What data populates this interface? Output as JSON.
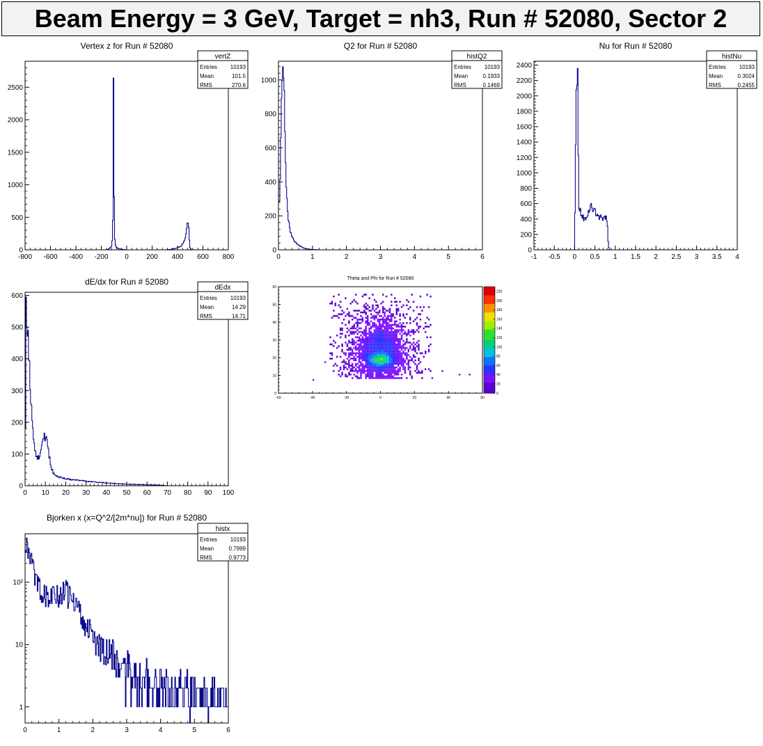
{
  "page": {
    "title": "Beam Energy = 3 GeV, Target = nh3, Run # 52080, Sector 2"
  },
  "stats_labels": {
    "entries": "Entries",
    "mean": "Mean",
    "rms": "RMS"
  },
  "palette": {
    "line": "#0a0a8c",
    "frame": "#000000",
    "title_bg": "#f2f2f2"
  },
  "chart_data": [
    {
      "id": "vertz",
      "type": "histogram",
      "title": "Vertex z for Run # 52080",
      "stats": {
        "name": "vertZ",
        "entries": "10193",
        "mean": "101.5",
        "rms": "270.6"
      },
      "xlim": [
        -800,
        800
      ],
      "ylim": [
        0,
        2900
      ],
      "xticks": [
        -800,
        -600,
        -400,
        -200,
        0,
        200,
        400,
        600,
        800
      ],
      "xtick_labels": [
        "-800",
        "-600",
        "-400",
        "-200",
        "0",
        "200",
        "400",
        "600",
        "800"
      ],
      "yticks": [
        0,
        500,
        1000,
        1500,
        2000,
        2500
      ],
      "ytick_labels": [
        "0",
        "500",
        "1000",
        "1500",
        "2000",
        "2500"
      ],
      "points": [
        [
          -800,
          0
        ],
        [
          -160,
          0
        ],
        [
          -150,
          5
        ],
        [
          -140,
          15
        ],
        [
          -130,
          30
        ],
        [
          -120,
          50
        ],
        [
          -110,
          200
        ],
        [
          -104,
          2800
        ],
        [
          -100,
          1000
        ],
        [
          -96,
          300
        ],
        [
          -92,
          100
        ],
        [
          -85,
          50
        ],
        [
          -75,
          30
        ],
        [
          -60,
          15
        ],
        [
          -40,
          8
        ],
        [
          -20,
          4
        ],
        [
          0,
          0
        ],
        [
          300,
          0
        ],
        [
          340,
          5
        ],
        [
          380,
          20
        ],
        [
          410,
          40
        ],
        [
          430,
          60
        ],
        [
          450,
          120
        ],
        [
          460,
          160
        ],
        [
          470,
          280
        ],
        [
          478,
          420
        ],
        [
          484,
          460
        ],
        [
          490,
          300
        ],
        [
          495,
          80
        ],
        [
          500,
          20
        ],
        [
          510,
          5
        ],
        [
          520,
          0
        ],
        [
          800,
          0
        ]
      ]
    },
    {
      "id": "q2",
      "type": "histogram",
      "title": "Q2 for Run # 52080",
      "stats": {
        "name": "histQ2",
        "entries": "10193",
        "mean": "0.1933",
        "rms": "0.1469"
      },
      "xlim": [
        0,
        6
      ],
      "ylim": [
        0,
        1110
      ],
      "xticks": [
        0,
        1,
        2,
        3,
        4,
        5,
        6
      ],
      "xtick_labels": [
        "0",
        "1",
        "2",
        "3",
        "4",
        "5",
        "6"
      ],
      "yticks": [
        0,
        200,
        400,
        600,
        800,
        1000
      ],
      "ytick_labels": [
        "0",
        "200",
        "400",
        "600",
        "800",
        "1000"
      ],
      "points": [
        [
          0,
          300
        ],
        [
          0.02,
          250
        ],
        [
          0.05,
          400
        ],
        [
          0.08,
          800
        ],
        [
          0.11,
          1060
        ],
        [
          0.14,
          1040
        ],
        [
          0.17,
          900
        ],
        [
          0.2,
          600
        ],
        [
          0.23,
          400
        ],
        [
          0.26,
          250
        ],
        [
          0.3,
          170
        ],
        [
          0.35,
          110
        ],
        [
          0.4,
          80
        ],
        [
          0.45,
          60
        ],
        [
          0.5,
          45
        ],
        [
          0.55,
          35
        ],
        [
          0.6,
          25
        ],
        [
          0.65,
          20
        ],
        [
          0.7,
          15
        ],
        [
          0.75,
          10
        ],
        [
          0.8,
          8
        ],
        [
          0.9,
          4
        ],
        [
          1.0,
          2
        ],
        [
          1.2,
          0
        ],
        [
          6,
          0
        ]
      ]
    },
    {
      "id": "nu",
      "type": "histogram",
      "title": "Nu for Run # 52080",
      "stats": {
        "name": "histNu",
        "entries": "10193",
        "mean": "0.3024",
        "rms": "0.2455"
      },
      "xlim": [
        -1,
        4
      ],
      "ylim": [
        0,
        2450
      ],
      "xticks": [
        -1,
        -0.5,
        0,
        0.5,
        1,
        1.5,
        2,
        2.5,
        3,
        3.5,
        4
      ],
      "xtick_labels": [
        "-1",
        "-0.5",
        "0",
        "0.5",
        "1",
        "1.5",
        "2",
        "2.5",
        "3",
        "3.5",
        "4"
      ],
      "yticks": [
        0,
        200,
        400,
        600,
        800,
        1000,
        1200,
        1400,
        1600,
        1800,
        2000,
        2200,
        2400
      ],
      "ytick_labels": [
        "0",
        "200",
        "400",
        "600",
        "800",
        "1000",
        "1200",
        "1400",
        "1600",
        "1800",
        "2000",
        "2200",
        "2400"
      ],
      "points": [
        [
          -1,
          0
        ],
        [
          0,
          0
        ],
        [
          0.02,
          1220
        ],
        [
          0.05,
          2340
        ],
        [
          0.08,
          2340
        ],
        [
          0.1,
          550
        ],
        [
          0.15,
          500
        ],
        [
          0.2,
          430
        ],
        [
          0.25,
          380
        ],
        [
          0.3,
          450
        ],
        [
          0.35,
          520
        ],
        [
          0.4,
          570
        ],
        [
          0.45,
          540
        ],
        [
          0.5,
          500
        ],
        [
          0.55,
          470
        ],
        [
          0.6,
          440
        ],
        [
          0.65,
          430
        ],
        [
          0.7,
          400
        ],
        [
          0.75,
          420
        ],
        [
          0.8,
          380
        ],
        [
          0.83,
          50
        ],
        [
          0.86,
          0
        ],
        [
          4,
          0
        ]
      ]
    },
    {
      "id": "dedx",
      "type": "histogram",
      "title": "dE/dx for Run # 52080",
      "stats": {
        "name": "dEdx",
        "entries": "10193",
        "mean": "14.29",
        "rms": "14.71"
      },
      "xlim": [
        0,
        100
      ],
      "ylim": [
        0,
        610
      ],
      "xticks": [
        0,
        10,
        20,
        30,
        40,
        50,
        60,
        70,
        80,
        90,
        100
      ],
      "xtick_labels": [
        "0",
        "10",
        "20",
        "30",
        "40",
        "50",
        "60",
        "70",
        "80",
        "90",
        "100"
      ],
      "yticks": [
        0,
        100,
        200,
        300,
        400,
        500,
        600
      ],
      "ytick_labels": [
        "0",
        "100",
        "200",
        "300",
        "400",
        "500",
        "600"
      ],
      "points": [
        [
          0,
          0
        ],
        [
          0.5,
          580
        ],
        [
          1,
          520
        ],
        [
          1.5,
          470
        ],
        [
          2,
          400
        ],
        [
          2.5,
          330
        ],
        [
          3,
          250
        ],
        [
          3.5,
          200
        ],
        [
          4,
          160
        ],
        [
          4.5,
          130
        ],
        [
          5,
          110
        ],
        [
          5.5,
          100
        ],
        [
          6,
          90
        ],
        [
          6.5,
          90
        ],
        [
          7,
          95
        ],
        [
          7.5,
          110
        ],
        [
          8,
          120
        ],
        [
          8.5,
          135
        ],
        [
          9,
          150
        ],
        [
          9.5,
          158
        ],
        [
          10,
          155
        ],
        [
          10.5,
          150
        ],
        [
          11,
          130
        ],
        [
          11.5,
          110
        ],
        [
          12,
          90
        ],
        [
          12.5,
          70
        ],
        [
          13,
          55
        ],
        [
          14,
          40
        ],
        [
          15,
          32
        ],
        [
          16,
          28
        ],
        [
          18,
          26
        ],
        [
          20,
          22
        ],
        [
          22,
          20
        ],
        [
          25,
          18
        ],
        [
          28,
          16
        ],
        [
          30,
          14
        ],
        [
          35,
          11
        ],
        [
          40,
          9
        ],
        [
          45,
          7
        ],
        [
          50,
          5
        ],
        [
          55,
          4
        ],
        [
          60,
          3
        ],
        [
          65,
          2
        ],
        [
          68,
          1
        ],
        [
          70,
          0
        ],
        [
          100,
          0
        ]
      ]
    },
    {
      "id": "thetaphi",
      "type": "heatmap",
      "title": "Theta and Phi for Run # 52080",
      "xlim": [
        -60,
        60
      ],
      "ylim": [
        0,
        60
      ],
      "xticks": [
        -60,
        -40,
        -20,
        0,
        20,
        40,
        60
      ],
      "xtick_labels": [
        "-60",
        "-40",
        "-20",
        "0",
        "20",
        "40",
        "60"
      ],
      "yticks": [
        0,
        10,
        20,
        30,
        40,
        50,
        60
      ],
      "ytick_labels": [
        "0",
        "10",
        "20",
        "30",
        "40",
        "50",
        "60"
      ],
      "zlim": [
        0,
        230
      ],
      "zticks": [
        0,
        20,
        40,
        60,
        80,
        100,
        120,
        140,
        160,
        180,
        200,
        220
      ],
      "ztick_labels": [
        "0",
        "20",
        "40",
        "60",
        "80",
        "100",
        "120",
        "140",
        "160",
        "180",
        "200",
        "220"
      ],
      "blob": {
        "x_center": 0,
        "y_center": 23,
        "x_sigma": 10,
        "y_sigma": 12,
        "hot_y": 19,
        "x_range": [
          -30,
          30
        ],
        "y_range": [
          8,
          56
        ]
      }
    },
    {
      "id": "bjorkenx",
      "type": "histogram",
      "title": "Bjorken x  (x=Q^2/[2m*nu]) for Run # 52080",
      "stats": {
        "name": "histx",
        "entries": "10193",
        "mean": "0.7999",
        "rms": "0.9773"
      },
      "log_y": true,
      "xlim": [
        0,
        6
      ],
      "ylim": [
        0.55,
        600
      ],
      "xticks": [
        0,
        1,
        2,
        3,
        4,
        5,
        6
      ],
      "xtick_labels": [
        "0",
        "1",
        "2",
        "3",
        "4",
        "5",
        "6"
      ],
      "yticks": [
        1,
        10,
        100
      ],
      "ytick_labels": [
        "1",
        "10",
        "10²"
      ],
      "points": [
        [
          0,
          300
        ],
        [
          0.05,
          430
        ],
        [
          0.1,
          300
        ],
        [
          0.2,
          200
        ],
        [
          0.3,
          130
        ],
        [
          0.4,
          100
        ],
        [
          0.5,
          80
        ],
        [
          0.6,
          70
        ],
        [
          0.7,
          65
        ],
        [
          0.8,
          60
        ],
        [
          0.9,
          62
        ],
        [
          1.0,
          70
        ],
        [
          1.1,
          78
        ],
        [
          1.2,
          75
        ],
        [
          1.3,
          65
        ],
        [
          1.4,
          55
        ],
        [
          1.5,
          45
        ],
        [
          1.6,
          35
        ],
        [
          1.7,
          28
        ],
        [
          1.8,
          22
        ],
        [
          1.9,
          18
        ],
        [
          2.0,
          14
        ],
        [
          2.2,
          10
        ],
        [
          2.4,
          8
        ],
        [
          2.6,
          6
        ],
        [
          2.8,
          5
        ],
        [
          3.0,
          4
        ],
        [
          3.3,
          3
        ],
        [
          3.6,
          2.5
        ],
        [
          4.0,
          2
        ],
        [
          4.5,
          1.8
        ],
        [
          5.0,
          1.6
        ],
        [
          5.5,
          1.5
        ],
        [
          6.0,
          1.4
        ]
      ]
    }
  ]
}
